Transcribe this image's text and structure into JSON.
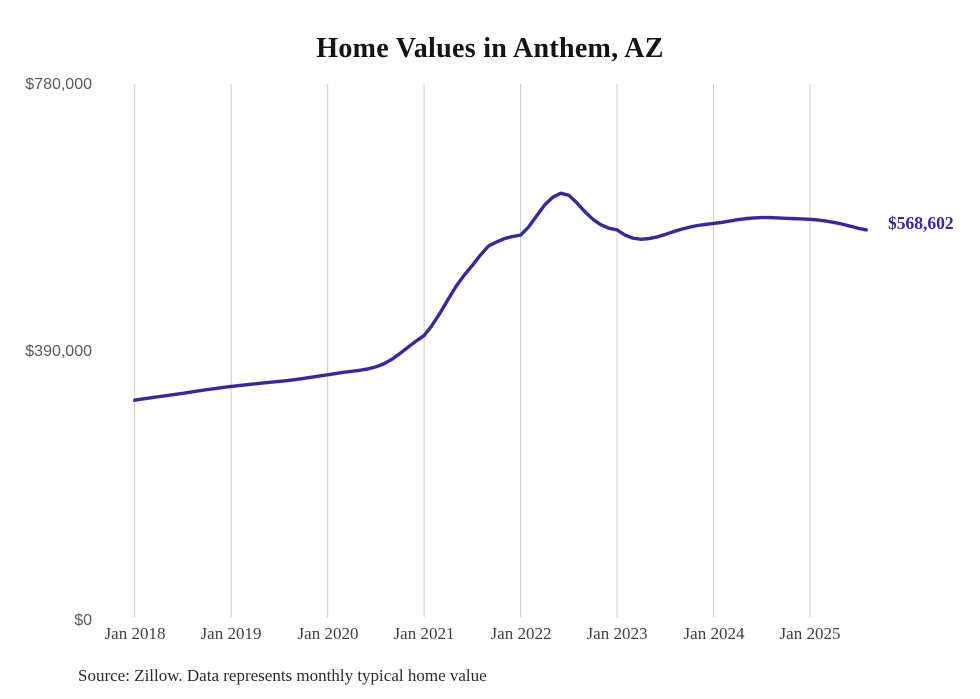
{
  "title": "Home Values in Anthem, AZ",
  "source_note": "Source: Zillow. Data represents monthly typical home value",
  "end_label": "$568,602",
  "colors": {
    "line": "#322d96",
    "grid": "#cdcdcd",
    "y_axis_text": "#595959",
    "x_axis_text": "#3f3f3f",
    "title_text": "#141414"
  },
  "y_axis": {
    "labels": [
      "$780,000",
      "$390,000",
      "$0"
    ]
  },
  "x_axis": {
    "labels": [
      "Jan 2018",
      "Jan 2019",
      "Jan 2020",
      "Jan 2021",
      "Jan 2022",
      "Jan 2023",
      "Jan 2024",
      "Jan 2025"
    ]
  },
  "chart_data": {
    "type": "line",
    "title": "Home Values in Anthem, AZ",
    "ylabel": "",
    "xlabel": "",
    "ylim": [
      0,
      780000
    ],
    "y_ticks": [
      0,
      390000,
      780000
    ],
    "x_tick_labels": [
      "Jan 2018",
      "Jan 2019",
      "Jan 2020",
      "Jan 2021",
      "Jan 2022",
      "Jan 2023",
      "Jan 2024",
      "Jan 2025"
    ],
    "grid": "vertical-only",
    "legend": "none",
    "x_start_month": "2018-01",
    "x_end_month": "2025-08",
    "end_value": 568602,
    "end_value_label": "$568,602",
    "series": [
      {
        "name": "Typical home value (monthly)",
        "values": [
          321000,
          322800,
          324500,
          326200,
          327800,
          329400,
          331000,
          332800,
          334600,
          336400,
          338000,
          339500,
          341000,
          342300,
          343600,
          344900,
          346100,
          347200,
          348300,
          349600,
          351000,
          352700,
          354500,
          356300,
          358000,
          359800,
          361500,
          363000,
          364500,
          366500,
          369500,
          374000,
          380500,
          389000,
          398000,
          407000,
          415000,
          430000,
          448000,
          468000,
          487000,
          503000,
          517000,
          532000,
          545000,
          551000,
          556000,
          559000,
          561000,
          573000,
          589000,
          605000,
          616000,
          622000,
          619000,
          608000,
          595000,
          584000,
          576000,
          571000,
          568600,
          561000,
          556500,
          555000,
          556000,
          558500,
          562000,
          566000,
          569500,
          572500,
          575000,
          576500,
          578000,
          579500,
          581500,
          583500,
          585000,
          586000,
          586500,
          586500,
          586000,
          585500,
          585000,
          584500,
          584000,
          583000,
          581500,
          579500,
          577000,
          574000,
          571000,
          568602
        ]
      }
    ]
  }
}
